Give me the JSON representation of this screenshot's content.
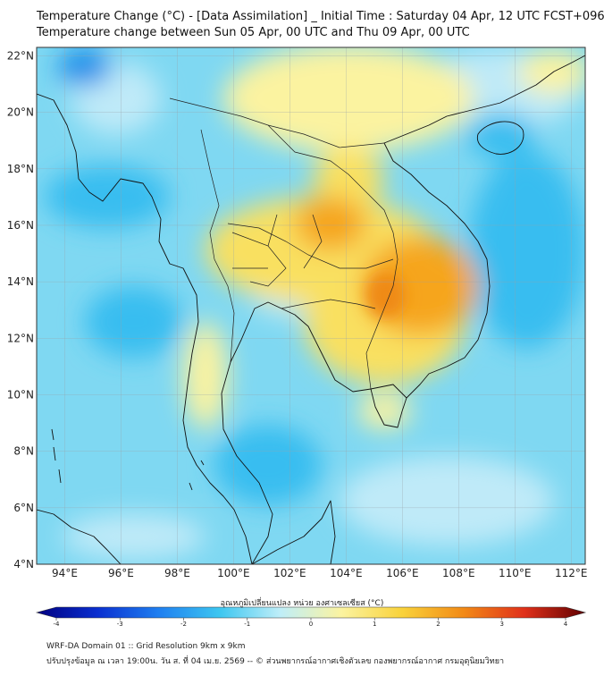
{
  "titles": {
    "line1": "Temperature Change (°C) - [Data Assimilation] _ Initial Time : Saturday 04 Apr, 12 UTC FCST+096",
    "line2": "Temperature change between Sun 05 Apr, 00 UTC and Thu 09 Apr, 00 UTC"
  },
  "map": {
    "lat_labels": [
      "22°N",
      "20°N",
      "18°N",
      "16°N",
      "14°N",
      "12°N",
      "10°N",
      "8°N",
      "6°N",
      "4°N"
    ],
    "lon_labels": [
      "94°E",
      "96°E",
      "98°E",
      "100°E",
      "102°E",
      "104°E",
      "106°E",
      "108°E",
      "110°E",
      "112°E"
    ],
    "lat_range": [
      4,
      22.3
    ],
    "lon_range": [
      93,
      112.5
    ],
    "grid": true,
    "colors": {
      "base": "#7fd8f2",
      "light_blue": "#bfeaf8",
      "blue": "#38bdf0",
      "deep_blue": "#1e90ea",
      "light_yellow": "#fbf3a0",
      "yellow": "#f9e060",
      "orange": "#f6a51f",
      "dark_orange": "#ef8a12",
      "coast": "#111111"
    }
  },
  "colorbar": {
    "title": "อุณหภูมิเปลี่ยนแปลง หน่วย องศาเซลเซียส (°C)",
    "ticks": [
      "-4",
      "-3",
      "-2",
      "-1",
      "0",
      "1",
      "2",
      "3",
      "4"
    ],
    "range": [
      -4,
      4
    ],
    "colors": [
      "#000080",
      "#0a2fd0",
      "#1f7ff0",
      "#3cc6f0",
      "#bfeef8",
      "#fbf3a0",
      "#f9d23a",
      "#f28a16",
      "#e0301a",
      "#600000"
    ]
  },
  "footer": {
    "line1": "WRF-DA Domain 01 :: Grid Resolution 9km x 9km",
    "line2": "ปรับปรุงข้อมูล ณ เวลา 19:00น. วัน ส. ที่ 04 เม.ย. 2569 -- © ส่วนพยากรณ์อากาศเชิงตัวเลข กองพยากรณ์อากาศ กรมอุตุนิยมวิทยา"
  }
}
